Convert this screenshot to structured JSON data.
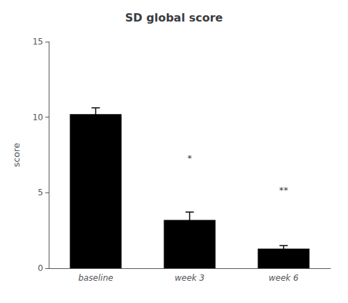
{
  "chart_data": {
    "type": "bar",
    "title": "SD global score",
    "ylabel": "score",
    "categories": [
      "baseline",
      "week 3",
      "week 6"
    ],
    "values": [
      10.2,
      3.2,
      1.3
    ],
    "errors": [
      0.42,
      0.52,
      0.2
    ],
    "color": "#000000",
    "ylim": [
      0,
      15
    ],
    "yticks": [
      0,
      5,
      10,
      15
    ],
    "annotations": [
      {
        "text": "*",
        "x": "week 3",
        "y": 7.0
      },
      {
        "text": "**",
        "x": "week 6",
        "y": 4.9
      }
    ],
    "grid": false
  }
}
